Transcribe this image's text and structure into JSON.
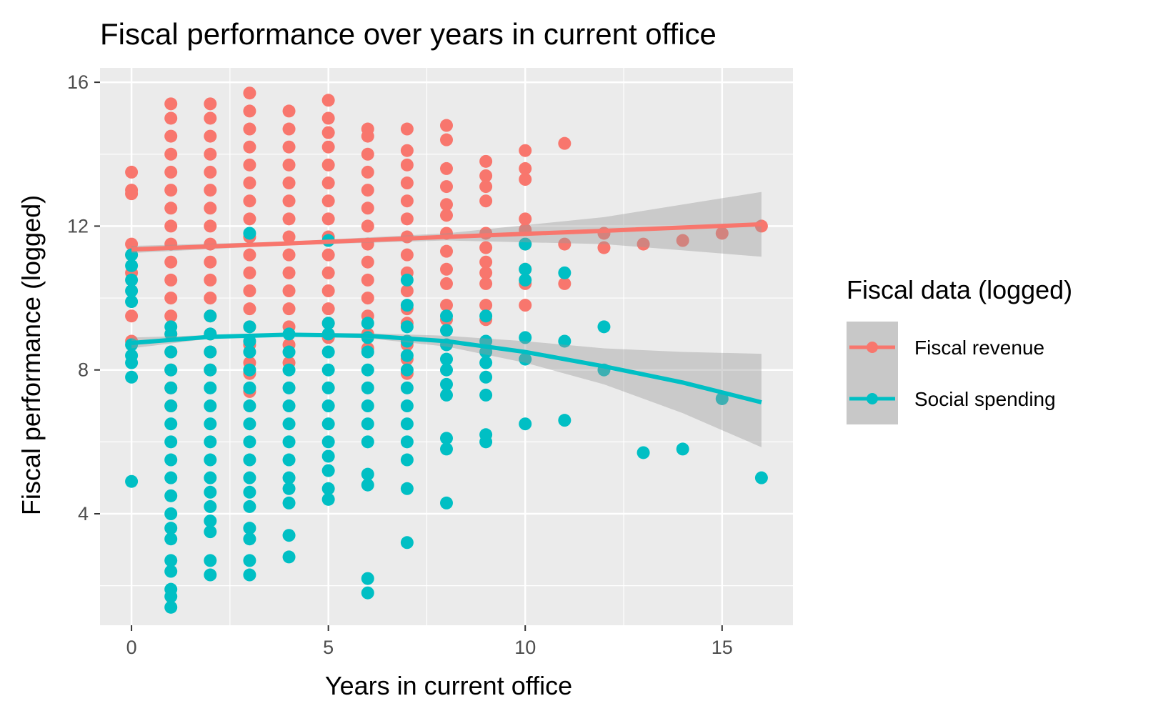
{
  "chart_data": {
    "type": "scatter",
    "title": "Fiscal performance over years in current office",
    "xlabel": "Years in current office",
    "ylabel": "Fiscal performance (logged)",
    "xlim": [
      -0.8,
      16.8
    ],
    "ylim": [
      0.9,
      16.4
    ],
    "x_ticks": [
      0,
      5,
      10,
      15
    ],
    "y_ticks": [
      4,
      8,
      12,
      16
    ],
    "grid": true,
    "legend": {
      "title": "Fiscal data (logged)",
      "placement": "right",
      "entries": [
        {
          "label": "Fiscal revenue",
          "color": "#F8766D"
        },
        {
          "label": "Social spending",
          "color": "#00BFC4"
        }
      ]
    },
    "series": [
      {
        "name": "Fiscal revenue",
        "color": "#F8766D",
        "points": [
          [
            0,
            13.5
          ],
          [
            0,
            13.0
          ],
          [
            0,
            12.9
          ],
          [
            0,
            11.5
          ],
          [
            0,
            11.2
          ],
          [
            0,
            10.7
          ],
          [
            0,
            9.5
          ],
          [
            0,
            8.8
          ],
          [
            1,
            15.4
          ],
          [
            1,
            15.0
          ],
          [
            1,
            14.5
          ],
          [
            1,
            14.0
          ],
          [
            1,
            13.5
          ],
          [
            1,
            13.0
          ],
          [
            1,
            12.5
          ],
          [
            1,
            12.0
          ],
          [
            1,
            11.5
          ],
          [
            1,
            11.0
          ],
          [
            1,
            10.5
          ],
          [
            1,
            10.0
          ],
          [
            1,
            9.5
          ],
          [
            1,
            9.0
          ],
          [
            1,
            8.5
          ],
          [
            1,
            8.0
          ],
          [
            1,
            7.5
          ],
          [
            1,
            7.0
          ],
          [
            2,
            15.4
          ],
          [
            2,
            15.0
          ],
          [
            2,
            14.5
          ],
          [
            2,
            14.0
          ],
          [
            2,
            13.5
          ],
          [
            2,
            13.0
          ],
          [
            2,
            12.5
          ],
          [
            2,
            12.0
          ],
          [
            2,
            11.5
          ],
          [
            2,
            11.0
          ],
          [
            2,
            10.5
          ],
          [
            2,
            10.0
          ],
          [
            2,
            9.5
          ],
          [
            2,
            9.0
          ],
          [
            2,
            8.5
          ],
          [
            2,
            8.0
          ],
          [
            3,
            15.7
          ],
          [
            3,
            15.2
          ],
          [
            3,
            14.7
          ],
          [
            3,
            14.2
          ],
          [
            3,
            13.7
          ],
          [
            3,
            13.2
          ],
          [
            3,
            12.7
          ],
          [
            3,
            12.2
          ],
          [
            3,
            11.7
          ],
          [
            3,
            11.2
          ],
          [
            3,
            10.7
          ],
          [
            3,
            10.2
          ],
          [
            3,
            9.7
          ],
          [
            3,
            9.2
          ],
          [
            3,
            8.7
          ],
          [
            3,
            8.2
          ],
          [
            3,
            7.9
          ],
          [
            3,
            7.4
          ],
          [
            4,
            15.2
          ],
          [
            4,
            14.7
          ],
          [
            4,
            14.2
          ],
          [
            4,
            13.7
          ],
          [
            4,
            13.2
          ],
          [
            4,
            12.7
          ],
          [
            4,
            12.2
          ],
          [
            4,
            11.7
          ],
          [
            4,
            11.2
          ],
          [
            4,
            10.7
          ],
          [
            4,
            10.2
          ],
          [
            4,
            9.7
          ],
          [
            4,
            9.2
          ],
          [
            4,
            8.7
          ],
          [
            4,
            8.2
          ],
          [
            5,
            15.5
          ],
          [
            5,
            15.0
          ],
          [
            5,
            14.6
          ],
          [
            5,
            14.2
          ],
          [
            5,
            13.7
          ],
          [
            5,
            13.2
          ],
          [
            5,
            12.7
          ],
          [
            5,
            12.2
          ],
          [
            5,
            11.7
          ],
          [
            5,
            11.2
          ],
          [
            5,
            10.7
          ],
          [
            5,
            10.2
          ],
          [
            5,
            9.7
          ],
          [
            5,
            9.3
          ],
          [
            5,
            8.9
          ],
          [
            6,
            14.7
          ],
          [
            6,
            14.5
          ],
          [
            6,
            14.0
          ],
          [
            6,
            13.5
          ],
          [
            6,
            13.0
          ],
          [
            6,
            12.5
          ],
          [
            6,
            12.0
          ],
          [
            6,
            11.5
          ],
          [
            6,
            11.0
          ],
          [
            6,
            10.5
          ],
          [
            6,
            10.0
          ],
          [
            6,
            9.5
          ],
          [
            6,
            9.0
          ],
          [
            6,
            8.6
          ],
          [
            7,
            14.7
          ],
          [
            7,
            14.1
          ],
          [
            7,
            13.7
          ],
          [
            7,
            13.2
          ],
          [
            7,
            12.7
          ],
          [
            7,
            12.2
          ],
          [
            7,
            11.7
          ],
          [
            7,
            11.2
          ],
          [
            7,
            10.7
          ],
          [
            7,
            10.2
          ],
          [
            7,
            9.7
          ],
          [
            7,
            9.3
          ],
          [
            7,
            8.7
          ],
          [
            7,
            8.3
          ],
          [
            7,
            7.9
          ],
          [
            8,
            14.8
          ],
          [
            8,
            14.4
          ],
          [
            8,
            13.6
          ],
          [
            8,
            13.1
          ],
          [
            8,
            12.6
          ],
          [
            8,
            12.3
          ],
          [
            8,
            11.8
          ],
          [
            8,
            11.3
          ],
          [
            8,
            10.8
          ],
          [
            8,
            10.4
          ],
          [
            8,
            9.8
          ],
          [
            8,
            9.4
          ],
          [
            9,
            13.8
          ],
          [
            9,
            13.4
          ],
          [
            9,
            13.1
          ],
          [
            9,
            12.7
          ],
          [
            9,
            11.8
          ],
          [
            9,
            11.4
          ],
          [
            9,
            11.0
          ],
          [
            9,
            10.7
          ],
          [
            9,
            10.4
          ],
          [
            9,
            9.8
          ],
          [
            9,
            9.4
          ],
          [
            10,
            14.1
          ],
          [
            10,
            13.6
          ],
          [
            10,
            13.3
          ],
          [
            10,
            12.2
          ],
          [
            10,
            11.9
          ],
          [
            10,
            11.5
          ],
          [
            10,
            10.8
          ],
          [
            10,
            10.4
          ],
          [
            10,
            9.8
          ],
          [
            11,
            14.3
          ],
          [
            11,
            11.5
          ],
          [
            11,
            10.4
          ],
          [
            12,
            11.8
          ],
          [
            12,
            11.4
          ],
          [
            13,
            11.5
          ],
          [
            14,
            11.6
          ],
          [
            15,
            11.8
          ],
          [
            16,
            12.0
          ]
        ],
        "trend": {
          "x": [
            0,
            4,
            8,
            12,
            16
          ],
          "y": [
            11.35,
            11.52,
            11.7,
            11.87,
            12.05
          ]
        },
        "ci_lower": [
          11.25,
          11.47,
          11.6,
          11.5,
          11.15
        ],
        "ci_upper": [
          11.45,
          11.57,
          11.8,
          12.25,
          12.95
        ]
      },
      {
        "name": "Social spending",
        "color": "#00BFC4",
        "points": [
          [
            0,
            11.2
          ],
          [
            0,
            10.9
          ],
          [
            0,
            10.5
          ],
          [
            0,
            10.2
          ],
          [
            0,
            9.9
          ],
          [
            0,
            8.7
          ],
          [
            0,
            8.4
          ],
          [
            0,
            8.2
          ],
          [
            0,
            7.8
          ],
          [
            0,
            4.9
          ],
          [
            1,
            9.2
          ],
          [
            1,
            9.0
          ],
          [
            1,
            8.5
          ],
          [
            1,
            8.0
          ],
          [
            1,
            7.5
          ],
          [
            1,
            7.0
          ],
          [
            1,
            6.5
          ],
          [
            1,
            6.0
          ],
          [
            1,
            5.5
          ],
          [
            1,
            5.0
          ],
          [
            1,
            4.5
          ],
          [
            1,
            4.0
          ],
          [
            1,
            3.6
          ],
          [
            1,
            3.3
          ],
          [
            1,
            2.7
          ],
          [
            1,
            2.4
          ],
          [
            1,
            1.9
          ],
          [
            1,
            1.7
          ],
          [
            1,
            1.4
          ],
          [
            2,
            9.5
          ],
          [
            2,
            9.0
          ],
          [
            2,
            8.5
          ],
          [
            2,
            8.0
          ],
          [
            2,
            7.5
          ],
          [
            2,
            7.0
          ],
          [
            2,
            6.5
          ],
          [
            2,
            6.0
          ],
          [
            2,
            5.5
          ],
          [
            2,
            5.0
          ],
          [
            2,
            4.6
          ],
          [
            2,
            4.2
          ],
          [
            2,
            3.8
          ],
          [
            2,
            3.5
          ],
          [
            2,
            2.7
          ],
          [
            2,
            2.3
          ],
          [
            3,
            11.8
          ],
          [
            3,
            9.2
          ],
          [
            3,
            8.8
          ],
          [
            3,
            8.5
          ],
          [
            3,
            8.0
          ],
          [
            3,
            7.5
          ],
          [
            3,
            7.0
          ],
          [
            3,
            6.5
          ],
          [
            3,
            6.0
          ],
          [
            3,
            5.5
          ],
          [
            3,
            5.0
          ],
          [
            3,
            4.6
          ],
          [
            3,
            4.2
          ],
          [
            3,
            3.6
          ],
          [
            3,
            3.3
          ],
          [
            3,
            2.7
          ],
          [
            3,
            2.3
          ],
          [
            4,
            9.0
          ],
          [
            4,
            8.5
          ],
          [
            4,
            8.0
          ],
          [
            4,
            7.5
          ],
          [
            4,
            7.0
          ],
          [
            4,
            6.5
          ],
          [
            4,
            6.0
          ],
          [
            4,
            5.5
          ],
          [
            4,
            5.0
          ],
          [
            4,
            4.7
          ],
          [
            4,
            4.3
          ],
          [
            4,
            3.4
          ],
          [
            4,
            2.8
          ],
          [
            5,
            11.6
          ],
          [
            5,
            9.3
          ],
          [
            5,
            9.0
          ],
          [
            5,
            8.5
          ],
          [
            5,
            8.0
          ],
          [
            5,
            7.5
          ],
          [
            5,
            7.0
          ],
          [
            5,
            6.5
          ],
          [
            5,
            6.0
          ],
          [
            5,
            5.6
          ],
          [
            5,
            5.2
          ],
          [
            5,
            4.7
          ],
          [
            5,
            4.4
          ],
          [
            6,
            9.3
          ],
          [
            6,
            8.9
          ],
          [
            6,
            8.5
          ],
          [
            6,
            8.0
          ],
          [
            6,
            7.5
          ],
          [
            6,
            7.0
          ],
          [
            6,
            6.5
          ],
          [
            6,
            6.0
          ],
          [
            6,
            5.1
          ],
          [
            6,
            4.8
          ],
          [
            6,
            2.2
          ],
          [
            6,
            1.8
          ],
          [
            7,
            10.5
          ],
          [
            7,
            9.8
          ],
          [
            7,
            9.2
          ],
          [
            7,
            8.8
          ],
          [
            7,
            8.4
          ],
          [
            7,
            8.0
          ],
          [
            7,
            7.5
          ],
          [
            7,
            7.0
          ],
          [
            7,
            6.5
          ],
          [
            7,
            6.0
          ],
          [
            7,
            5.5
          ],
          [
            7,
            4.7
          ],
          [
            7,
            3.2
          ],
          [
            8,
            9.5
          ],
          [
            8,
            9.1
          ],
          [
            8,
            8.7
          ],
          [
            8,
            8.3
          ],
          [
            8,
            8.0
          ],
          [
            8,
            7.6
          ],
          [
            8,
            7.3
          ],
          [
            8,
            6.1
          ],
          [
            8,
            5.8
          ],
          [
            8,
            4.3
          ],
          [
            9,
            9.5
          ],
          [
            9,
            8.8
          ],
          [
            9,
            8.5
          ],
          [
            9,
            8.2
          ],
          [
            9,
            7.8
          ],
          [
            9,
            7.3
          ],
          [
            9,
            6.2
          ],
          [
            9,
            6.0
          ],
          [
            10,
            11.5
          ],
          [
            10,
            10.8
          ],
          [
            10,
            10.5
          ],
          [
            10,
            8.9
          ],
          [
            10,
            8.3
          ],
          [
            10,
            6.5
          ],
          [
            11,
            10.7
          ],
          [
            11,
            8.8
          ],
          [
            11,
            6.6
          ],
          [
            12,
            9.2
          ],
          [
            12,
            8.0
          ],
          [
            13,
            5.7
          ],
          [
            14,
            5.8
          ],
          [
            15,
            7.2
          ],
          [
            16,
            5.0
          ]
        ],
        "trend": {
          "x": [
            0,
            2,
            4,
            6,
            8,
            10,
            12,
            14,
            16
          ],
          "y": [
            8.75,
            8.92,
            8.98,
            8.95,
            8.8,
            8.5,
            8.1,
            7.65,
            7.1
          ]
        },
        "ci_lower": [
          8.6,
          8.87,
          8.93,
          8.88,
          8.65,
          8.2,
          7.6,
          6.8,
          5.85
        ],
        "ci_upper": [
          8.9,
          8.97,
          9.03,
          9.02,
          8.95,
          8.8,
          8.6,
          8.5,
          8.45
        ]
      }
    ]
  }
}
